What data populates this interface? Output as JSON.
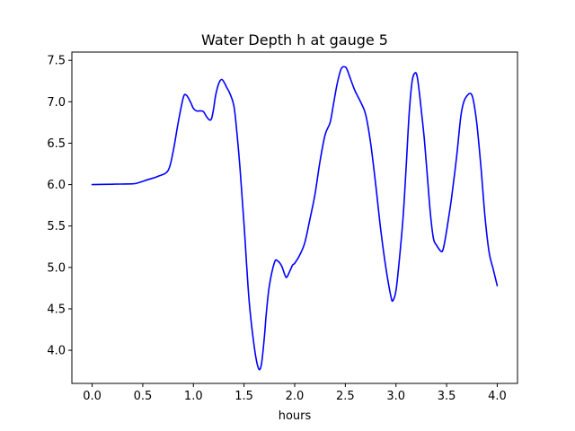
{
  "chart_data": {
    "type": "line",
    "title": "Water Depth h at gauge 5",
    "xlabel": "hours",
    "ylabel": "",
    "xlim": [
      -0.2,
      4.2
    ],
    "ylim": [
      3.6,
      7.6
    ],
    "xticks": [
      0.0,
      0.5,
      1.0,
      1.5,
      2.0,
      2.5,
      3.0,
      3.5,
      4.0
    ],
    "xtick_labels": [
      "0.0",
      "0.5",
      "1.0",
      "1.5",
      "2.0",
      "2.5",
      "3.0",
      "3.5",
      "4.0"
    ],
    "yticks": [
      4.0,
      4.5,
      5.0,
      5.5,
      6.0,
      6.5,
      7.0,
      7.5
    ],
    "ytick_labels": [
      "4.0",
      "4.5",
      "5.0",
      "5.5",
      "6.0",
      "6.5",
      "7.0",
      "7.5"
    ],
    "grid": false,
    "legend": "none",
    "series": [
      {
        "color": "#0000ff",
        "x": [
          0.0,
          0.2,
          0.4,
          0.45,
          0.55,
          0.65,
          0.75,
          0.8,
          0.85,
          0.9,
          0.93,
          0.97,
          1.0,
          1.03,
          1.07,
          1.1,
          1.13,
          1.16,
          1.18,
          1.2,
          1.22,
          1.25,
          1.28,
          1.31,
          1.33,
          1.36,
          1.4,
          1.43,
          1.46,
          1.5,
          1.55,
          1.6,
          1.64,
          1.67,
          1.7,
          1.72,
          1.75,
          1.8,
          1.83,
          1.87,
          1.9,
          1.92,
          1.95,
          1.98,
          2.0,
          2.05,
          2.1,
          2.15,
          2.2,
          2.25,
          2.3,
          2.35,
          2.38,
          2.42,
          2.46,
          2.5,
          2.52,
          2.55,
          2.58,
          2.6,
          2.65,
          2.7,
          2.75,
          2.8,
          2.85,
          2.9,
          2.95,
          2.97,
          3.0,
          3.03,
          3.07,
          3.1,
          3.13,
          3.16,
          3.19,
          3.21,
          3.23,
          3.25,
          3.28,
          3.31,
          3.34,
          3.37,
          3.4,
          3.44,
          3.46,
          3.48,
          3.51,
          3.55,
          3.6,
          3.64,
          3.67,
          3.7,
          3.73,
          3.75,
          3.77,
          3.8,
          3.84,
          3.88,
          3.92,
          3.96,
          4.0
        ],
        "y": [
          6.0,
          6.005,
          6.01,
          6.02,
          6.06,
          6.1,
          6.17,
          6.4,
          6.75,
          7.05,
          7.08,
          7.0,
          6.92,
          6.89,
          6.89,
          6.88,
          6.82,
          6.78,
          6.8,
          6.92,
          7.08,
          7.22,
          7.27,
          7.22,
          7.17,
          7.1,
          6.95,
          6.62,
          6.2,
          5.52,
          4.6,
          4.05,
          3.79,
          3.82,
          4.15,
          4.45,
          4.78,
          5.06,
          5.08,
          5.02,
          4.92,
          4.88,
          4.95,
          5.03,
          5.05,
          5.15,
          5.3,
          5.58,
          5.88,
          6.28,
          6.6,
          6.75,
          6.95,
          7.22,
          7.4,
          7.42,
          7.38,
          7.28,
          7.18,
          7.12,
          7.0,
          6.85,
          6.5,
          6.0,
          5.45,
          5.0,
          4.65,
          4.6,
          4.72,
          5.05,
          5.6,
          6.2,
          6.85,
          7.25,
          7.35,
          7.3,
          7.12,
          6.9,
          6.55,
          6.1,
          5.65,
          5.35,
          5.27,
          5.2,
          5.2,
          5.3,
          5.52,
          5.85,
          6.35,
          6.82,
          7.0,
          7.07,
          7.1,
          7.08,
          6.98,
          6.72,
          6.2,
          5.6,
          5.18,
          4.98,
          4.78
        ]
      }
    ]
  }
}
